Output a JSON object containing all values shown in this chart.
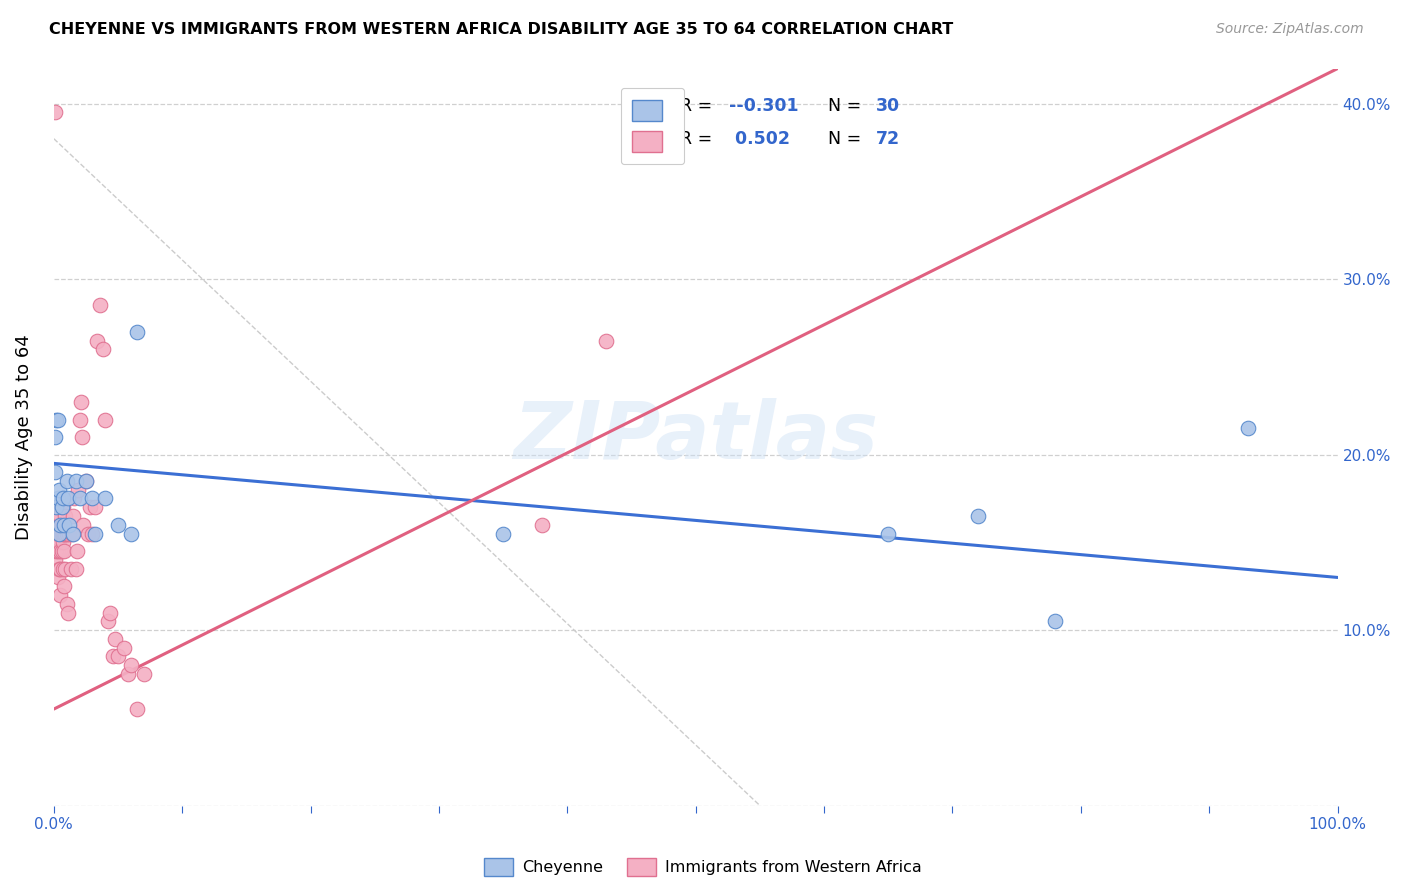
{
  "title": "CHEYENNE VS IMMIGRANTS FROM WESTERN AFRICA DISABILITY AGE 35 TO 64 CORRELATION CHART",
  "source": "Source: ZipAtlas.com",
  "ylabel": "Disability Age 35 to 64",
  "xlim": [
    0.0,
    1.0
  ],
  "ylim": [
    0.0,
    0.42
  ],
  "yticks": [
    0.0,
    0.1,
    0.2,
    0.3,
    0.4
  ],
  "ytick_labels": [
    "",
    "10.0%",
    "20.0%",
    "30.0%",
    "40.0%"
  ],
  "xtick_labels": [
    "0.0%",
    "",
    "",
    "",
    "",
    "",
    "",
    "",
    "",
    "",
    "100.0%"
  ],
  "cheyenne_color": "#aac4e8",
  "cheyenne_edge": "#5588cc",
  "immigrants_color": "#f4b0c4",
  "immigrants_edge": "#e07090",
  "blue_line_color": "#3b6fd4",
  "pink_line_color": "#e06080",
  "diag_line_color": "#cccccc",
  "text_blue": "#3366cc",
  "legend_R_color": "#3366cc",
  "R_cheyenne": "-0.301",
  "N_cheyenne": "30",
  "R_immigrants": "0.502",
  "N_immigrants": "72",
  "legend_label_cheyenne": "Cheyenne",
  "legend_label_immigrants": "Immigrants from Western Africa",
  "watermark": "ZIPatlas",
  "cheyenne_x": [
    0.001,
    0.001,
    0.002,
    0.002,
    0.003,
    0.003,
    0.004,
    0.004,
    0.005,
    0.006,
    0.007,
    0.008,
    0.01,
    0.011,
    0.012,
    0.015,
    0.017,
    0.02,
    0.025,
    0.03,
    0.032,
    0.04,
    0.05,
    0.06,
    0.065,
    0.35,
    0.65,
    0.72,
    0.78,
    0.93
  ],
  "cheyenne_y": [
    0.19,
    0.21,
    0.22,
    0.17,
    0.22,
    0.175,
    0.18,
    0.155,
    0.16,
    0.17,
    0.175,
    0.16,
    0.185,
    0.175,
    0.16,
    0.155,
    0.185,
    0.175,
    0.185,
    0.175,
    0.155,
    0.175,
    0.16,
    0.155,
    0.27,
    0.155,
    0.155,
    0.165,
    0.105,
    0.215
  ],
  "immigrants_x": [
    0.001,
    0.001,
    0.002,
    0.002,
    0.002,
    0.002,
    0.003,
    0.003,
    0.003,
    0.003,
    0.003,
    0.004,
    0.004,
    0.004,
    0.004,
    0.004,
    0.005,
    0.005,
    0.005,
    0.005,
    0.005,
    0.005,
    0.006,
    0.006,
    0.006,
    0.006,
    0.007,
    0.007,
    0.007,
    0.007,
    0.008,
    0.008,
    0.008,
    0.009,
    0.009,
    0.009,
    0.01,
    0.01,
    0.011,
    0.012,
    0.013,
    0.014,
    0.015,
    0.016,
    0.017,
    0.018,
    0.019,
    0.02,
    0.021,
    0.022,
    0.023,
    0.025,
    0.027,
    0.028,
    0.03,
    0.032,
    0.034,
    0.036,
    0.038,
    0.04,
    0.042,
    0.044,
    0.046,
    0.048,
    0.05,
    0.055,
    0.058,
    0.06,
    0.065,
    0.07,
    0.38,
    0.43
  ],
  "immigrants_y": [
    0.395,
    0.14,
    0.145,
    0.155,
    0.16,
    0.165,
    0.145,
    0.155,
    0.16,
    0.165,
    0.13,
    0.135,
    0.15,
    0.155,
    0.16,
    0.17,
    0.145,
    0.155,
    0.16,
    0.165,
    0.12,
    0.135,
    0.145,
    0.155,
    0.16,
    0.17,
    0.135,
    0.15,
    0.155,
    0.17,
    0.125,
    0.145,
    0.155,
    0.135,
    0.155,
    0.165,
    0.115,
    0.155,
    0.11,
    0.155,
    0.135,
    0.155,
    0.165,
    0.175,
    0.135,
    0.145,
    0.18,
    0.22,
    0.23,
    0.21,
    0.16,
    0.185,
    0.155,
    0.17,
    0.155,
    0.17,
    0.265,
    0.285,
    0.26,
    0.22,
    0.105,
    0.11,
    0.085,
    0.095,
    0.085,
    0.09,
    0.075,
    0.08,
    0.055,
    0.075,
    0.16,
    0.265
  ],
  "blue_line_x": [
    0.0,
    1.0
  ],
  "blue_line_y": [
    0.195,
    0.13
  ],
  "pink_line_x": [
    0.0,
    1.0
  ],
  "pink_line_y": [
    0.055,
    0.42
  ],
  "diag_line_x": [
    0.0,
    0.55
  ],
  "diag_line_y": [
    0.38,
    0.0
  ]
}
